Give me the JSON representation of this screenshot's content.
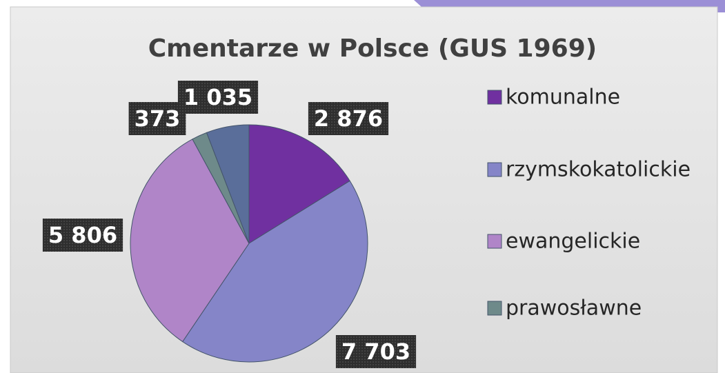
{
  "chart_data": {
    "type": "pie",
    "title": "Cmentarze w Polsce (GUS 1969)",
    "categories": [
      "komunalne",
      "rzymskokatolickie",
      "ewangelickie",
      "prawosławne",
      null
    ],
    "values": [
      2876,
      7703,
      5806,
      373,
      1035
    ],
    "value_labels": [
      "2 876",
      "7 703",
      "5 806",
      "373",
      "1 035"
    ],
    "colors": [
      "#7030a0",
      "#8585c8",
      "#b085c8",
      "#6e8a8a",
      "#5a6e9a"
    ]
  }
}
